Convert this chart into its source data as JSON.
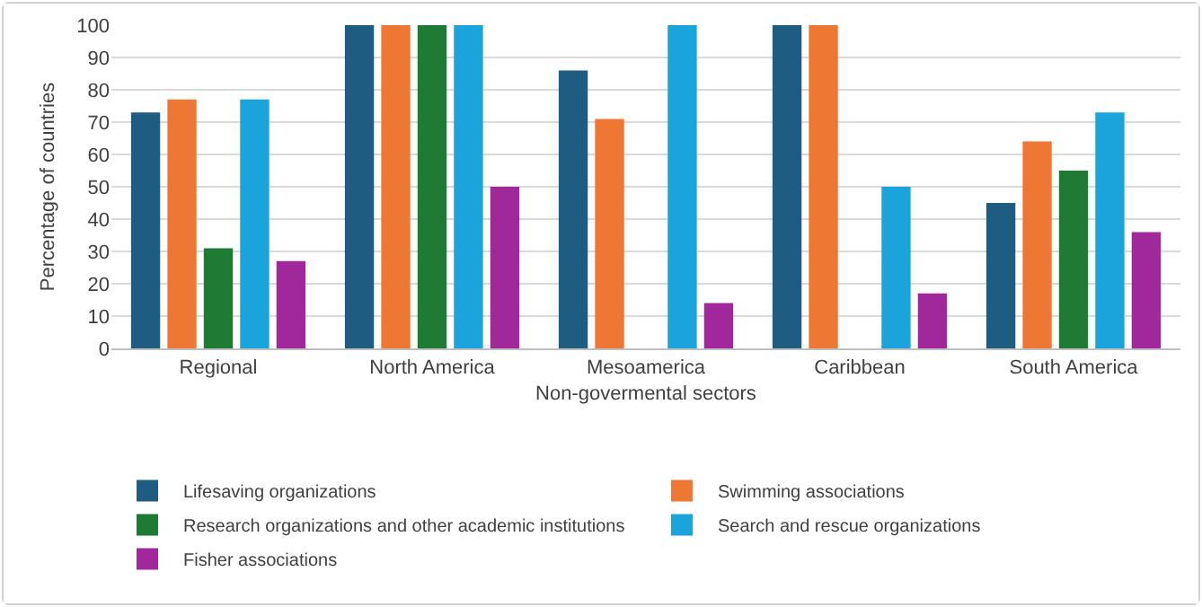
{
  "chart_data": {
    "type": "bar",
    "xlabel": "Non-govermental sectors",
    "ylabel": "Percentage of countries",
    "categories": [
      "Regional",
      "North America",
      "Mesoamerica",
      "Caribbean",
      "South America"
    ],
    "series": [
      {
        "name": "Lifesaving organizations",
        "color": "#1f5c82",
        "values": [
          73,
          100,
          86,
          100,
          45
        ]
      },
      {
        "name": "Swimming associations",
        "color": "#ee7733",
        "values": [
          77,
          100,
          71,
          100,
          64
        ]
      },
      {
        "name": "Research organizations and other academic institutions",
        "color": "#1e7b34",
        "values": [
          31,
          100,
          0,
          0,
          55
        ]
      },
      {
        "name": "Search and rescue organizations",
        "color": "#1ba3dc",
        "values": [
          77,
          100,
          100,
          50,
          73
        ]
      },
      {
        "name": "Fisher associations",
        "color": "#a0289a",
        "values": [
          27,
          50,
          14,
          17,
          36
        ]
      }
    ],
    "ylim": [
      0,
      100
    ],
    "yticks": [
      0,
      10,
      20,
      30,
      40,
      50,
      60,
      70,
      80,
      90,
      100
    ],
    "grid": "y",
    "legend": "bottom"
  }
}
